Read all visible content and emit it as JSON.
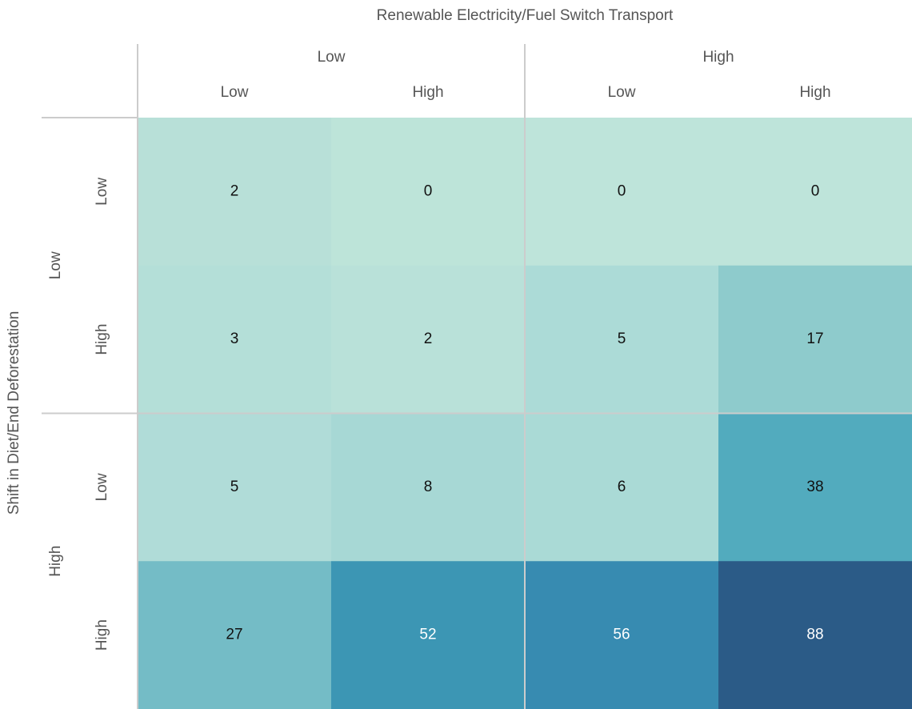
{
  "chart_data": {
    "type": "heatmap",
    "title": "Renewable Electricity/Fuel Switch Transport",
    "y_title": "Shift in Diet/End Deforestation",
    "column_groups": [
      "Low",
      "High"
    ],
    "columns": [
      "Low",
      "High",
      "Low",
      "High"
    ],
    "row_groups": [
      "Low",
      "High"
    ],
    "rows": [
      "Low",
      "High",
      "Low",
      "High"
    ],
    "values": [
      [
        2,
        0,
        0,
        0
      ],
      [
        3,
        2,
        5,
        17
      ],
      [
        5,
        8,
        6,
        38
      ],
      [
        27,
        52,
        56,
        88
      ]
    ],
    "colors": [
      [
        "#b8e0d8",
        "#bde4d9",
        "#bee4da",
        "#bee4da"
      ],
      [
        "#b4dfd8",
        "#b9e1d9",
        "#acdbd7",
        "#8ecbcc"
      ],
      [
        "#b0dcd8",
        "#a7d8d5",
        "#aadad6",
        "#52abbe"
      ],
      [
        "#74bcc6",
        "#3c96b4",
        "#378bb1",
        "#2b5b87"
      ]
    ]
  }
}
